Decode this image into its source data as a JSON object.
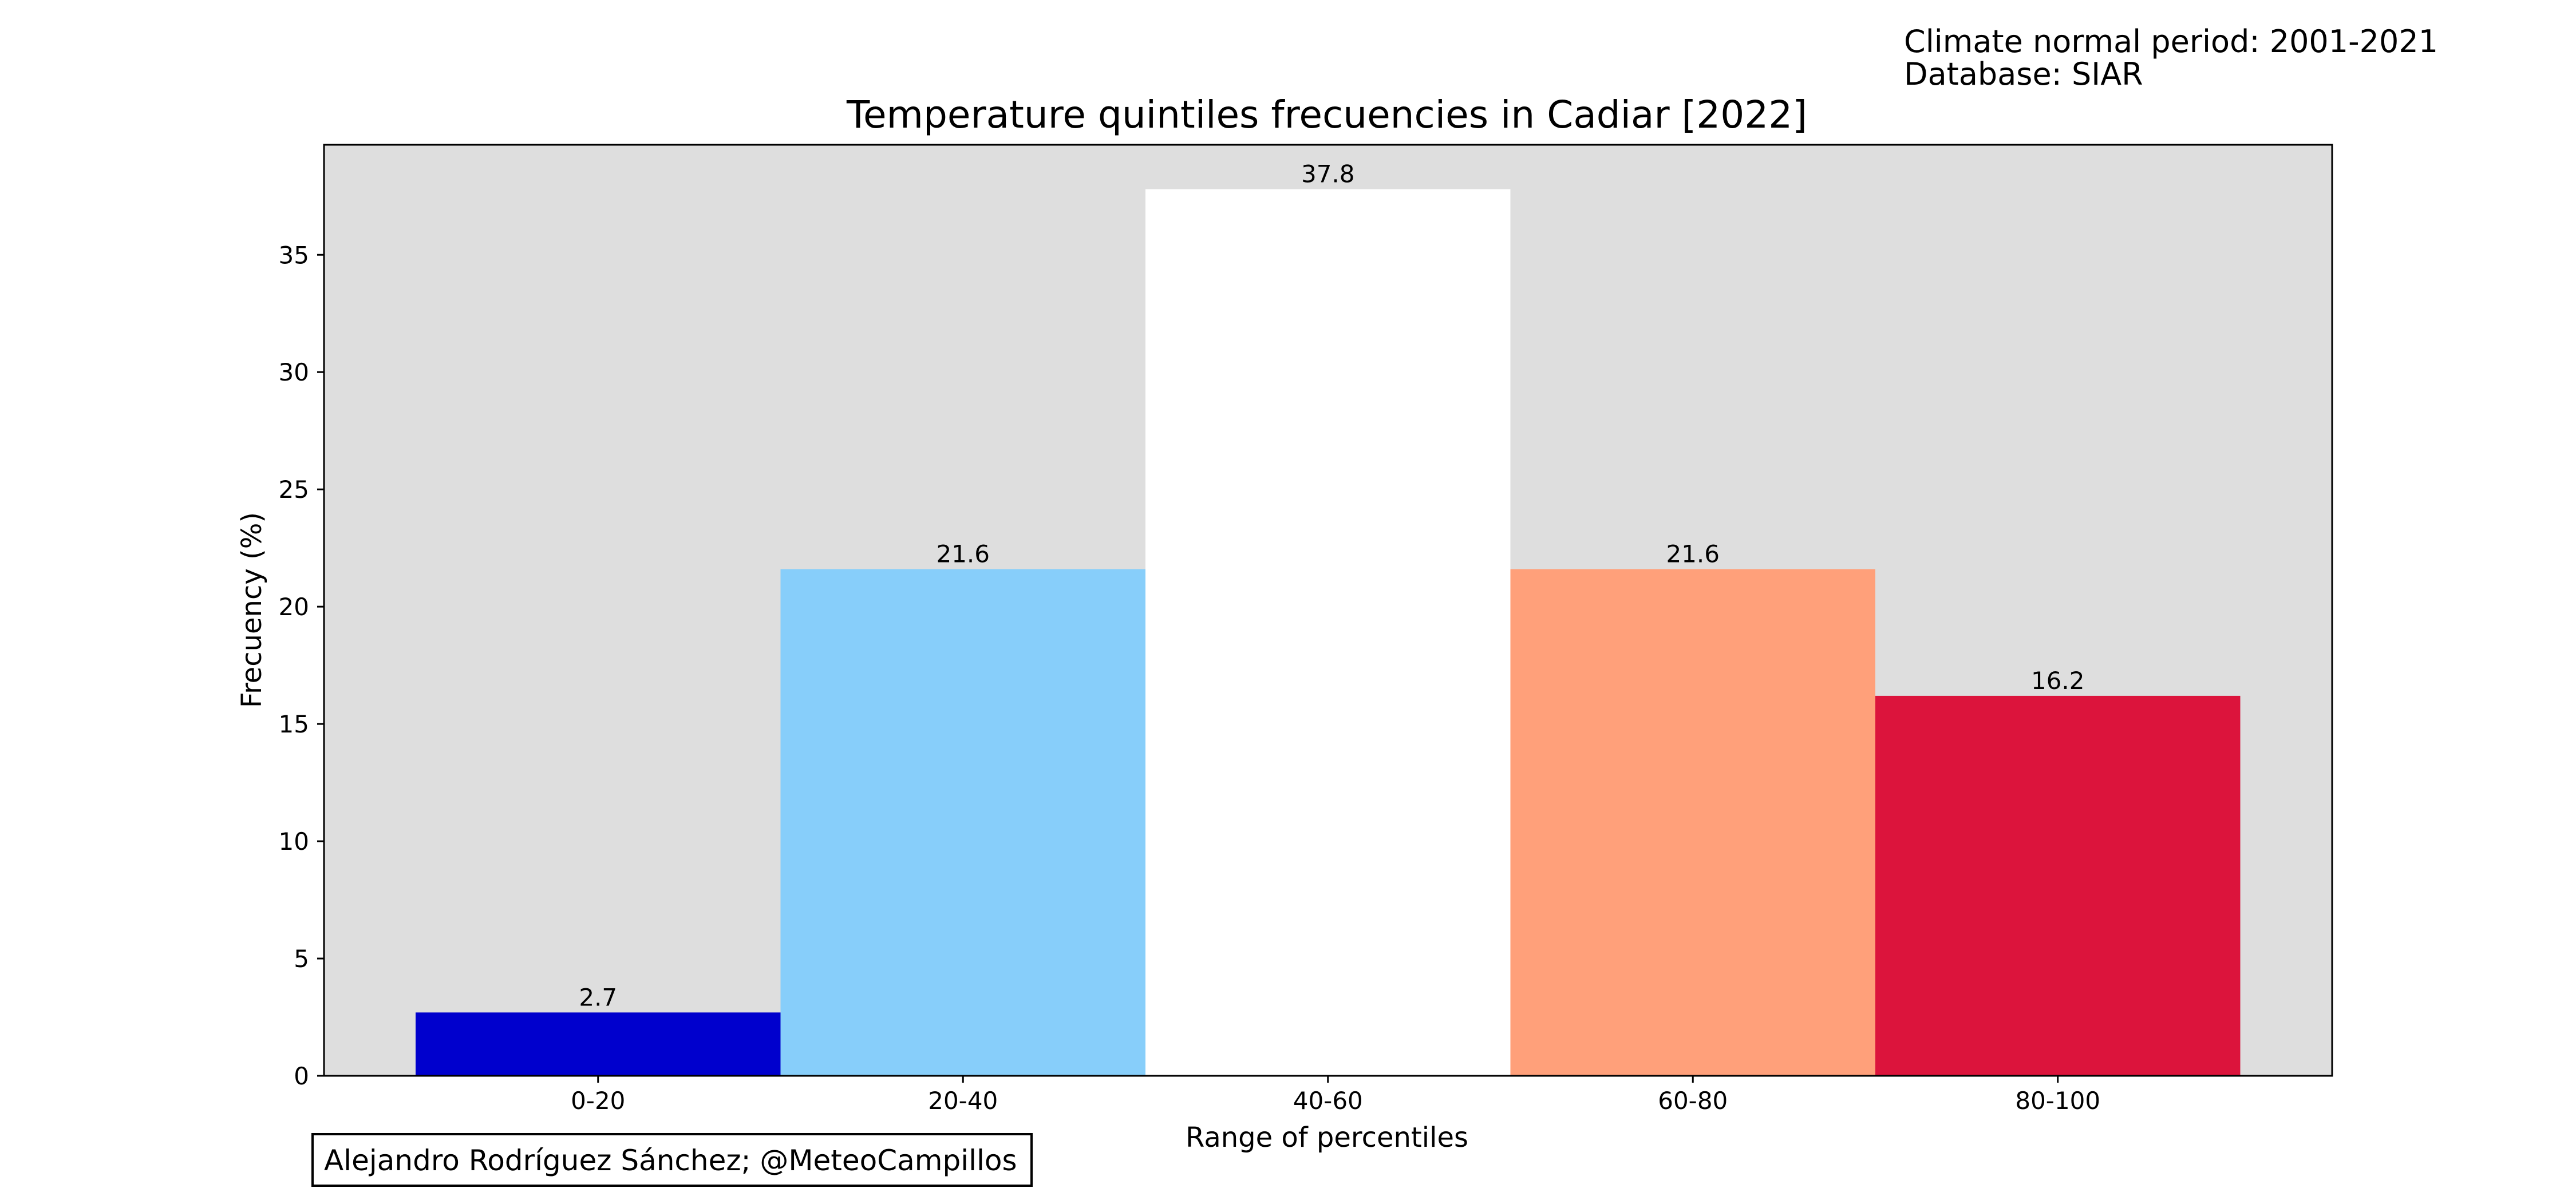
{
  "header_note": {
    "line1": "Climate normal period: 2001-2021",
    "line2": "Database: SIAR"
  },
  "chart_data": {
    "type": "bar",
    "title": "Temperature quintiles frecuencies in Cadiar [2022]",
    "xlabel": "Range of percentiles",
    "ylabel": "Frecuency (%)",
    "categories": [
      "0-20",
      "20-40",
      "40-60",
      "60-80",
      "80-100"
    ],
    "values": [
      2.7,
      21.6,
      37.8,
      21.6,
      16.2
    ],
    "value_labels": [
      "2.7",
      "21.6",
      "37.8",
      "21.6",
      "16.2"
    ],
    "bar_colors": [
      "#0000CD",
      "#87CEFA",
      "#FFFFFF",
      "#FFA07A",
      "#DC143C"
    ],
    "ylim": [
      0,
      39.69
    ],
    "yticks": [
      0,
      5,
      10,
      15,
      20,
      25,
      30,
      35
    ],
    "ytick_labels": [
      "0",
      "5",
      "10",
      "15",
      "20",
      "25",
      "30",
      "35"
    ],
    "grid": false,
    "plot_background": "#DEDEDE"
  },
  "credit": "Alejandro Rodríguez Sánchez; @MeteoCampillos"
}
